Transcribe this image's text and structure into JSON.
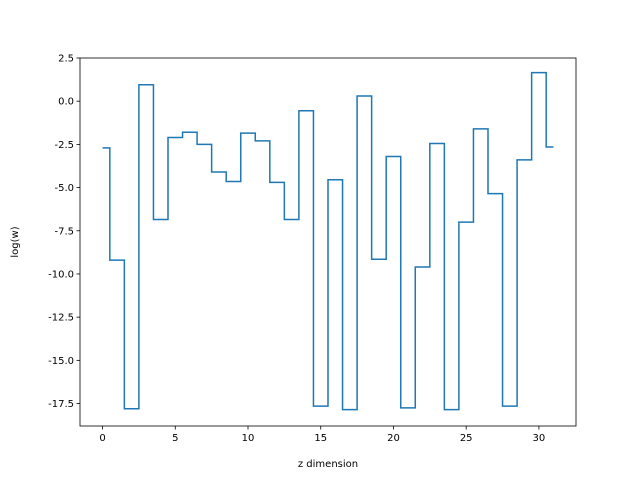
{
  "chart_data": {
    "type": "line",
    "style": "step-mid",
    "xlabel": "z dimension",
    "ylabel": "log(w)",
    "xlim": [
      -1.55,
      32.55
    ],
    "ylim": [
      -18.8,
      2.5
    ],
    "xticks": [
      0,
      5,
      10,
      15,
      20,
      25,
      30
    ],
    "yticks": [
      2.5,
      0.0,
      -2.5,
      -5.0,
      -7.5,
      -10.0,
      -12.5,
      -15.0,
      -17.5
    ],
    "grid": false,
    "series": [
      {
        "color": "#1f77b4",
        "x": [
          0,
          1,
          2,
          3,
          4,
          5,
          6,
          7,
          8,
          9,
          10,
          11,
          12,
          13,
          14,
          15,
          16,
          17,
          18,
          19,
          20,
          21,
          22,
          23,
          24,
          25,
          26,
          27,
          28,
          29,
          30,
          31
        ],
        "y": [
          -2.7,
          -9.2,
          -17.8,
          0.95,
          -6.85,
          -2.1,
          -1.8,
          -2.5,
          -4.1,
          -4.65,
          -1.85,
          -2.3,
          -4.7,
          -6.85,
          -0.55,
          -17.65,
          -4.55,
          -17.85,
          0.3,
          -9.15,
          -3.2,
          -17.75,
          -9.6,
          -2.45,
          -17.85,
          -7.0,
          -1.6,
          -5.35,
          -17.65,
          -3.4,
          1.65,
          -2.65
        ]
      }
    ]
  }
}
